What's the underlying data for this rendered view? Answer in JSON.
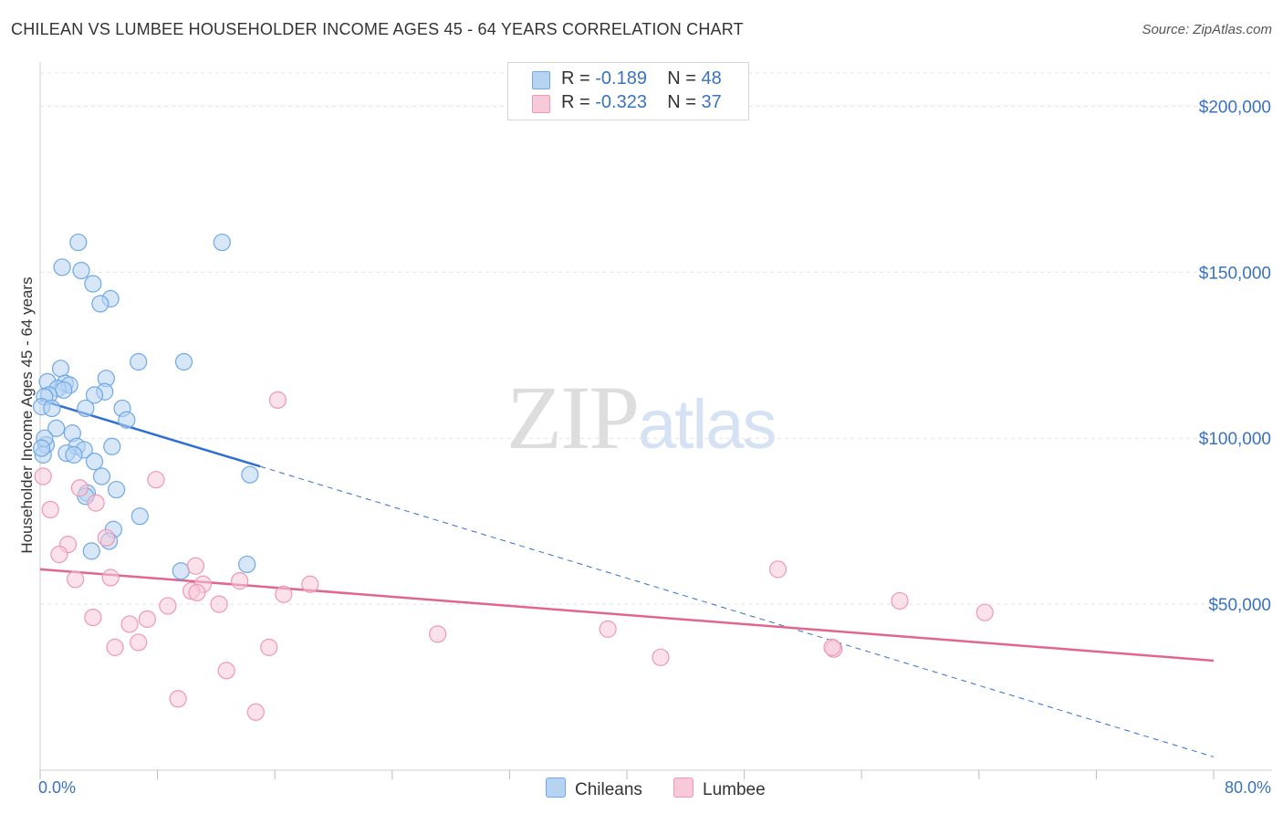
{
  "title": "CHILEAN VS LUMBEE HOUSEHOLDER INCOME AGES 45 - 64 YEARS CORRELATION CHART",
  "source": "Source: ZipAtlas.com",
  "watermark": {
    "zip": "ZIP",
    "atlas": "atlas"
  },
  "legend": {
    "rows": [
      {
        "r_label": "R =",
        "r_value": "-0.189",
        "n_label": "N =",
        "n_value": "48"
      },
      {
        "r_label": "R =",
        "r_value": "-0.323",
        "n_label": "N =",
        "n_value": "37"
      }
    ],
    "bottom": [
      "Chileans",
      "Lumbee"
    ]
  },
  "chart_data": {
    "type": "scatter",
    "title": "CHILEAN VS LUMBEE HOUSEHOLDER INCOME AGES 45 - 64 YEARS CORRELATION CHART",
    "xlabel": "",
    "ylabel": "Householder Income Ages 45 - 64 years",
    "xlim": [
      0,
      80
    ],
    "ylim": [
      0,
      210000
    ],
    "x_tick_labels": [
      "0.0%",
      "80.0%"
    ],
    "y_ticks": [
      50000,
      100000,
      150000,
      200000
    ],
    "y_tick_labels": [
      "$50,000",
      "$100,000",
      "$150,000",
      "$200,000"
    ],
    "grid": true,
    "legend_position": "top-center",
    "series": [
      {
        "name": "Chileans",
        "color": "#6fa8e6",
        "fill": "#b7d3f2",
        "line_color": "#2f6fd1",
        "trend": {
          "x0": 0,
          "y0": 111500,
          "x1": 15,
          "y1": 91500,
          "dashed_to_x": 80,
          "dashed_to_y": 4000
        },
        "points": [
          [
            2.6,
            159000
          ],
          [
            12.4,
            159000
          ],
          [
            1.5,
            151500
          ],
          [
            2.8,
            150500
          ],
          [
            3.6,
            146500
          ],
          [
            4.8,
            142000
          ],
          [
            4.1,
            140500
          ],
          [
            6.7,
            123000
          ],
          [
            9.8,
            123000
          ],
          [
            1.4,
            121000
          ],
          [
            0.5,
            117000
          ],
          [
            1.7,
            116500
          ],
          [
            2.0,
            116000
          ],
          [
            4.5,
            118000
          ],
          [
            1.2,
            115000
          ],
          [
            1.6,
            114500
          ],
          [
            4.4,
            114000
          ],
          [
            3.7,
            113000
          ],
          [
            0.6,
            113000
          ],
          [
            0.3,
            112500
          ],
          [
            3.1,
            109000
          ],
          [
            5.6,
            109000
          ],
          [
            0.1,
            109500
          ],
          [
            0.8,
            109000
          ],
          [
            5.9,
            105500
          ],
          [
            1.1,
            103000
          ],
          [
            2.2,
            101500
          ],
          [
            0.4,
            98000
          ],
          [
            2.5,
            97500
          ],
          [
            3.0,
            96500
          ],
          [
            4.9,
            97500
          ],
          [
            1.8,
            95500
          ],
          [
            2.3,
            95000
          ],
          [
            0.2,
            95000
          ],
          [
            3.7,
            93000
          ],
          [
            4.2,
            88500
          ],
          [
            14.3,
            89000
          ],
          [
            5.2,
            84500
          ],
          [
            3.2,
            83500
          ],
          [
            3.1,
            82500
          ],
          [
            6.8,
            76500
          ],
          [
            5.0,
            72500
          ],
          [
            4.7,
            69000
          ],
          [
            3.5,
            66000
          ],
          [
            14.1,
            62000
          ],
          [
            9.6,
            60000
          ],
          [
            0.3,
            100000
          ],
          [
            0.1,
            97000
          ]
        ]
      },
      {
        "name": "Lumbee",
        "color": "#ee98b4",
        "fill": "#f8c9d8",
        "line_color": "#e0668e",
        "trend": {
          "x0": 0,
          "y0": 60500,
          "x1": 80,
          "y1": 33000
        },
        "points": [
          [
            0.2,
            88500
          ],
          [
            16.2,
            111500
          ],
          [
            7.9,
            87500
          ],
          [
            2.7,
            85000
          ],
          [
            3.8,
            80500
          ],
          [
            0.7,
            78500
          ],
          [
            1.9,
            68000
          ],
          [
            4.5,
            70000
          ],
          [
            1.3,
            65000
          ],
          [
            10.6,
            61500
          ],
          [
            50.3,
            60500
          ],
          [
            4.8,
            58000
          ],
          [
            2.4,
            57500
          ],
          [
            13.6,
            57000
          ],
          [
            11.1,
            56000
          ],
          [
            18.4,
            56000
          ],
          [
            10.3,
            54000
          ],
          [
            10.7,
            53500
          ],
          [
            16.6,
            53000
          ],
          [
            12.2,
            50000
          ],
          [
            8.7,
            49500
          ],
          [
            58.6,
            51000
          ],
          [
            64.4,
            47500
          ],
          [
            3.6,
            46000
          ],
          [
            7.3,
            45500
          ],
          [
            6.1,
            44000
          ],
          [
            27.1,
            41000
          ],
          [
            38.7,
            42500
          ],
          [
            6.7,
            38500
          ],
          [
            5.1,
            37000
          ],
          [
            15.6,
            37000
          ],
          [
            42.3,
            34000
          ],
          [
            54.1,
            36500
          ],
          [
            12.7,
            30000
          ],
          [
            9.4,
            21500
          ],
          [
            14.7,
            17500
          ],
          [
            54.0,
            37000
          ]
        ]
      }
    ]
  }
}
